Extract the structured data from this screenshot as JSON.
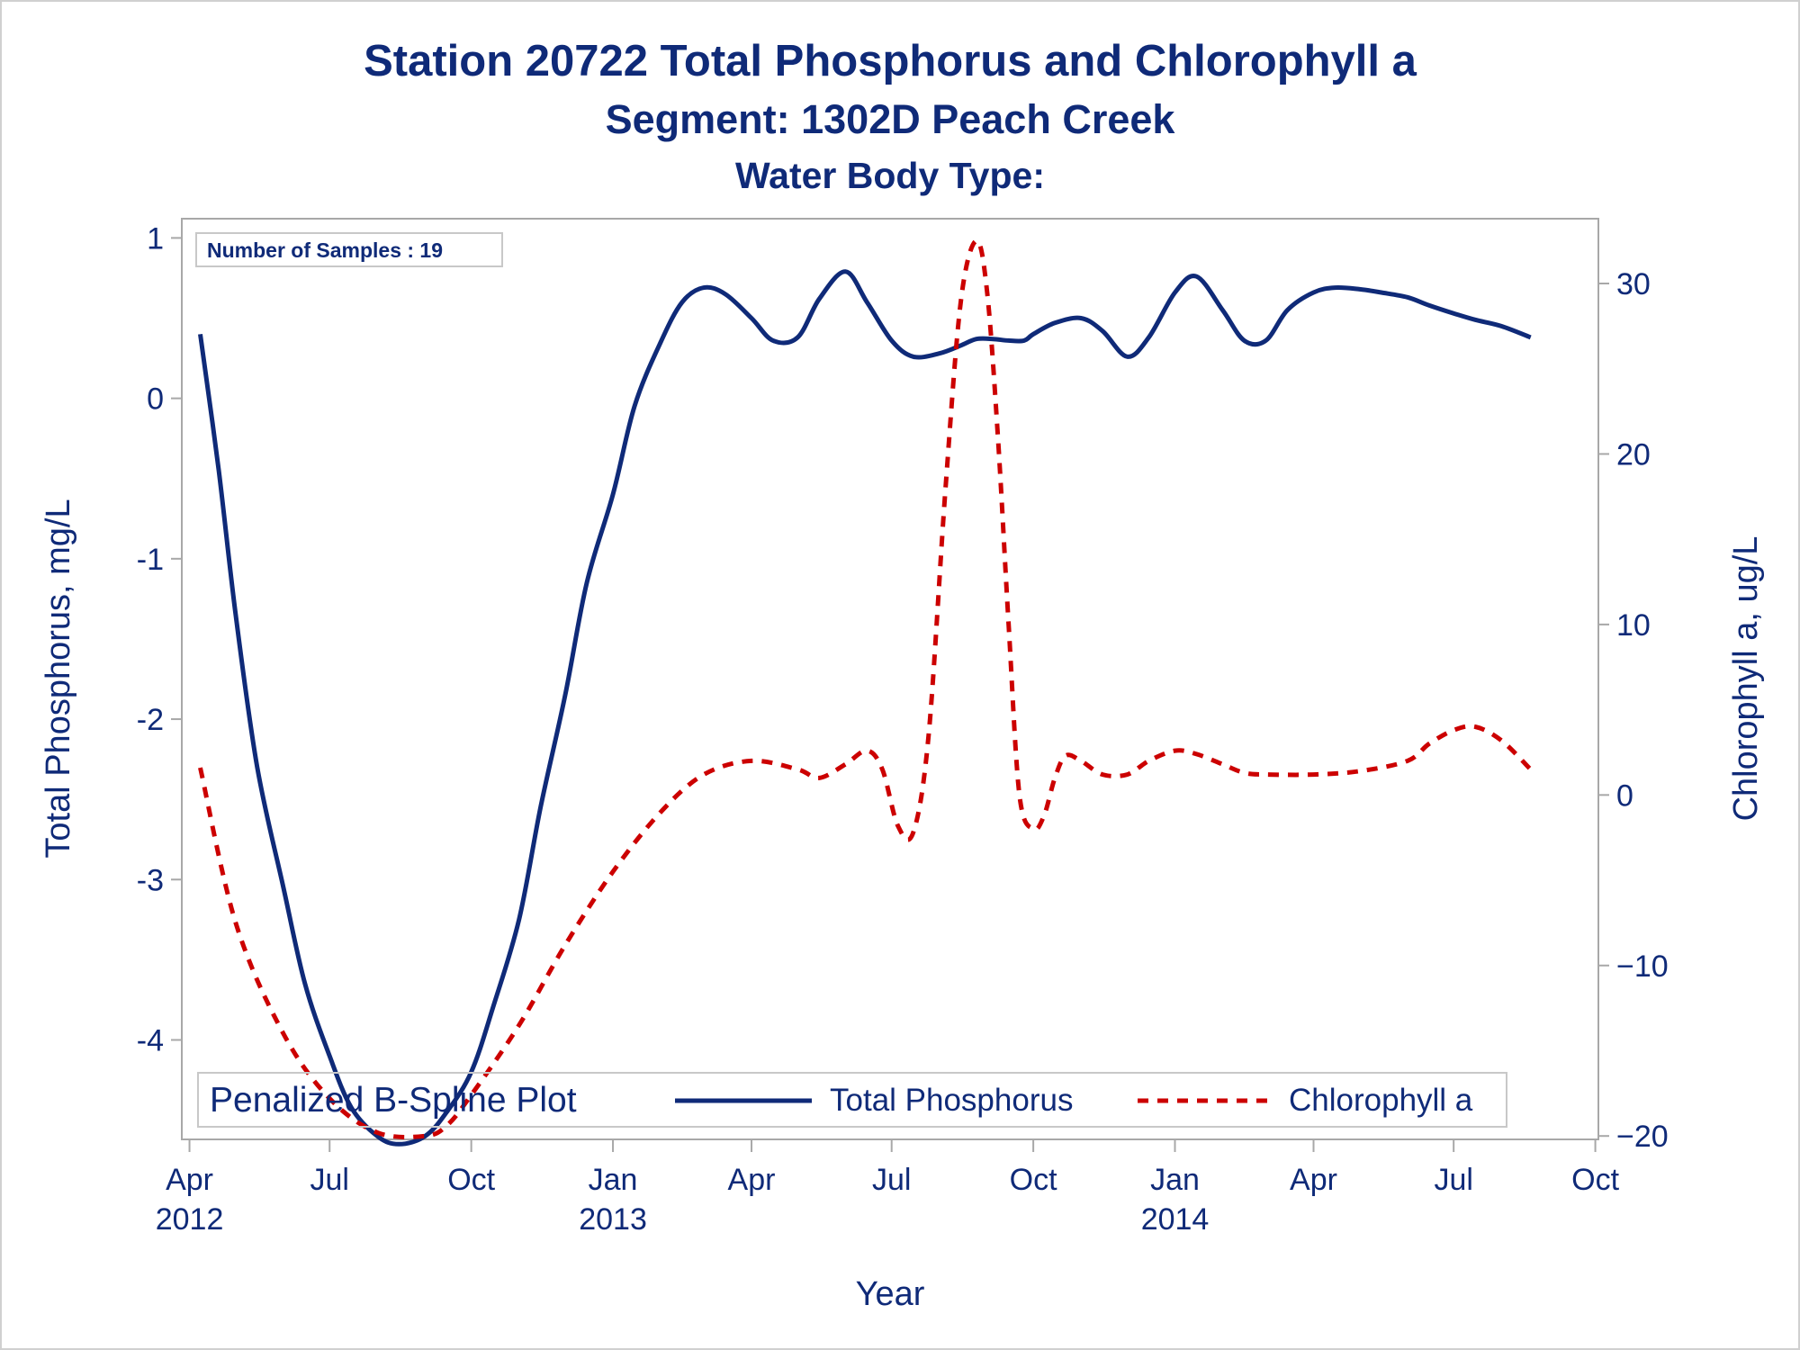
{
  "chart_data": {
    "type": "line",
    "title": "Station 20722  Total Phosphorus and Chlorophyll a",
    "subtitle": "Segment: 1302D  Peach Creek",
    "subtitle2": "Water Body Type:",
    "xlabel": "Year",
    "ylabel": "Total Phosphorus, mg/L",
    "y2label": "Chlorophyll a, ug/L",
    "inset_label": "Number of Samples : 19",
    "legend_title": "Penalized B-Spline Plot",
    "legend_position": "bottom-inside",
    "grid": false,
    "x_ticks": [
      {
        "date": "2012-04-01",
        "label": "Apr",
        "year": "2012"
      },
      {
        "date": "2012-07-01",
        "label": "Jul",
        "year": ""
      },
      {
        "date": "2012-10-01",
        "label": "Oct",
        "year": ""
      },
      {
        "date": "2013-01-01",
        "label": "Jan",
        "year": "2013"
      },
      {
        "date": "2013-04-01",
        "label": "Apr",
        "year": ""
      },
      {
        "date": "2013-07-01",
        "label": "Jul",
        "year": ""
      },
      {
        "date": "2013-10-01",
        "label": "Oct",
        "year": ""
      },
      {
        "date": "2014-01-01",
        "label": "Jan",
        "year": "2014"
      },
      {
        "date": "2014-04-01",
        "label": "Apr",
        "year": ""
      },
      {
        "date": "2014-07-01",
        "label": "Jul",
        "year": ""
      },
      {
        "date": "2014-10-01",
        "label": "Oct",
        "year": ""
      }
    ],
    "xlim": [
      "2012-03-27",
      "2014-10-03"
    ],
    "y_ticks": [
      1,
      0,
      -1,
      -2,
      -3,
      -4
    ],
    "ylim": [
      -4.62,
      1.12
    ],
    "y2_ticks": [
      30,
      20,
      10,
      0,
      -10,
      -20
    ],
    "y2lim": [
      -20.2,
      33.8
    ],
    "series": [
      {
        "name": "Total Phosphorus",
        "axis": "y",
        "color": "#0f2a78",
        "dash": "solid",
        "x": [
          "2012-04-08",
          "2012-04-20",
          "2012-05-01",
          "2012-05-15",
          "2012-06-01",
          "2012-06-15",
          "2012-07-01",
          "2012-07-15",
          "2012-08-01",
          "2012-08-15",
          "2012-09-01",
          "2012-09-15",
          "2012-10-01",
          "2012-10-15",
          "2012-11-01",
          "2012-11-15",
          "2012-12-01",
          "2012-12-15",
          "2013-01-01",
          "2013-01-15",
          "2013-02-01",
          "2013-02-15",
          "2013-03-01",
          "2013-03-15",
          "2013-04-01",
          "2013-04-15",
          "2013-05-01",
          "2013-05-15",
          "2013-06-01",
          "2013-06-15",
          "2013-07-01",
          "2013-07-15",
          "2013-08-01",
          "2013-08-15",
          "2013-08-25",
          "2013-09-05",
          "2013-09-15",
          "2013-09-25",
          "2013-10-01",
          "2013-10-15",
          "2013-11-01",
          "2013-11-15",
          "2013-12-01",
          "2013-12-15",
          "2014-01-01",
          "2014-01-15",
          "2014-02-01",
          "2014-02-15",
          "2014-03-01",
          "2014-03-15",
          "2014-04-01",
          "2014-04-15",
          "2014-05-01",
          "2014-05-15",
          "2014-06-01",
          "2014-06-15",
          "2014-07-01",
          "2014-07-15",
          "2014-08-01",
          "2014-08-20"
        ],
        "values": [
          0.4,
          -0.45,
          -1.35,
          -2.3,
          -3.05,
          -3.65,
          -4.1,
          -4.42,
          -4.6,
          -4.65,
          -4.6,
          -4.45,
          -4.2,
          -3.8,
          -3.25,
          -2.55,
          -1.85,
          -1.15,
          -0.6,
          -0.05,
          0.35,
          0.6,
          0.69,
          0.65,
          0.5,
          0.36,
          0.38,
          0.62,
          0.79,
          0.6,
          0.36,
          0.26,
          0.28,
          0.33,
          0.37,
          0.37,
          0.36,
          0.36,
          0.4,
          0.47,
          0.5,
          0.42,
          0.26,
          0.38,
          0.66,
          0.76,
          0.55,
          0.36,
          0.36,
          0.55,
          0.66,
          0.69,
          0.68,
          0.66,
          0.63,
          0.58,
          0.53,
          0.49,
          0.45,
          0.38
        ]
      },
      {
        "name": "Chlorophyll a",
        "axis": "y2",
        "color": "#cc0000",
        "dash": "dashed",
        "x": [
          "2012-04-08",
          "2012-05-01",
          "2012-06-01",
          "2012-07-01",
          "2012-08-01",
          "2012-09-01",
          "2012-09-15",
          "2012-10-01",
          "2012-11-01",
          "2012-12-01",
          "2013-01-01",
          "2013-02-01",
          "2013-03-01",
          "2013-04-01",
          "2013-05-01",
          "2013-05-15",
          "2013-06-01",
          "2013-06-15",
          "2013-06-25",
          "2013-07-05",
          "2013-07-15",
          "2013-07-25",
          "2013-08-05",
          "2013-08-15",
          "2013-08-25",
          "2013-09-01",
          "2013-09-08",
          "2013-09-15",
          "2013-09-22",
          "2013-10-01",
          "2013-10-08",
          "2013-10-15",
          "2013-10-22",
          "2013-11-01",
          "2013-11-15",
          "2013-12-01",
          "2013-12-15",
          "2014-01-01",
          "2014-01-15",
          "2014-02-01",
          "2014-02-15",
          "2014-03-01",
          "2014-04-01",
          "2014-05-01",
          "2014-06-01",
          "2014-06-15",
          "2014-07-01",
          "2014-07-15",
          "2014-08-01",
          "2014-08-20"
        ],
        "values": [
          1.6,
          -7.5,
          -14.0,
          -17.8,
          -19.8,
          -20.0,
          -19.4,
          -17.6,
          -13.5,
          -8.8,
          -4.5,
          -1.0,
          1.2,
          2.0,
          1.5,
          1.0,
          1.8,
          2.6,
          1.5,
          -1.8,
          -2.2,
          3.5,
          18.0,
          29.0,
          32.5,
          29.5,
          21.0,
          10.0,
          0.0,
          -2.0,
          -1.2,
          1.0,
          2.3,
          2.0,
          1.2,
          1.2,
          2.0,
          2.6,
          2.4,
          1.8,
          1.3,
          1.2,
          1.2,
          1.4,
          2.0,
          3.0,
          3.8,
          4.0,
          3.2,
          1.5
        ]
      }
    ]
  }
}
